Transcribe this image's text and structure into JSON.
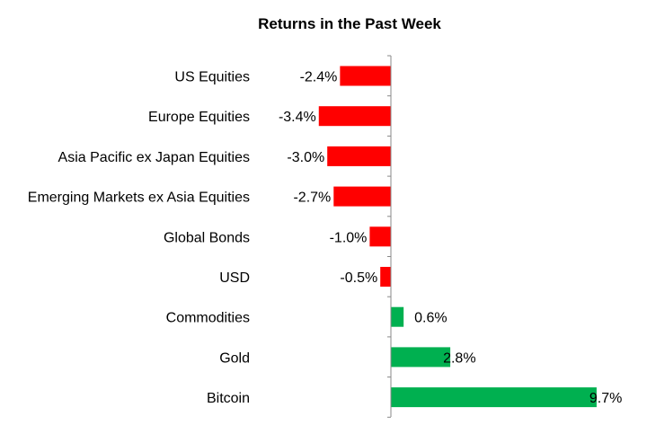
{
  "chart_data": {
    "type": "bar",
    "orientation": "horizontal",
    "title": "Returns in the Past Week",
    "categories": [
      "US Equities",
      "Europe Equities",
      "Asia Pacific ex Japan Equities",
      "Emerging Markets ex Asia Equities",
      "Global Bonds",
      "USD",
      "Commodities",
      "Gold",
      "Bitcoin"
    ],
    "values": [
      -2.4,
      -3.4,
      -3.0,
      -2.7,
      -1.0,
      -0.5,
      0.6,
      2.8,
      9.7
    ],
    "value_labels": [
      "-2.4%",
      "-3.4%",
      "-3.0%",
      "-2.7%",
      "-1.0%",
      "-0.5%",
      "0.6%",
      "2.8%",
      "9.7%"
    ],
    "xlim": [
      -4,
      10
    ],
    "grid": false,
    "colors": {
      "negative": "#ff0000",
      "positive": "#00b050",
      "axis": "#888888"
    }
  }
}
